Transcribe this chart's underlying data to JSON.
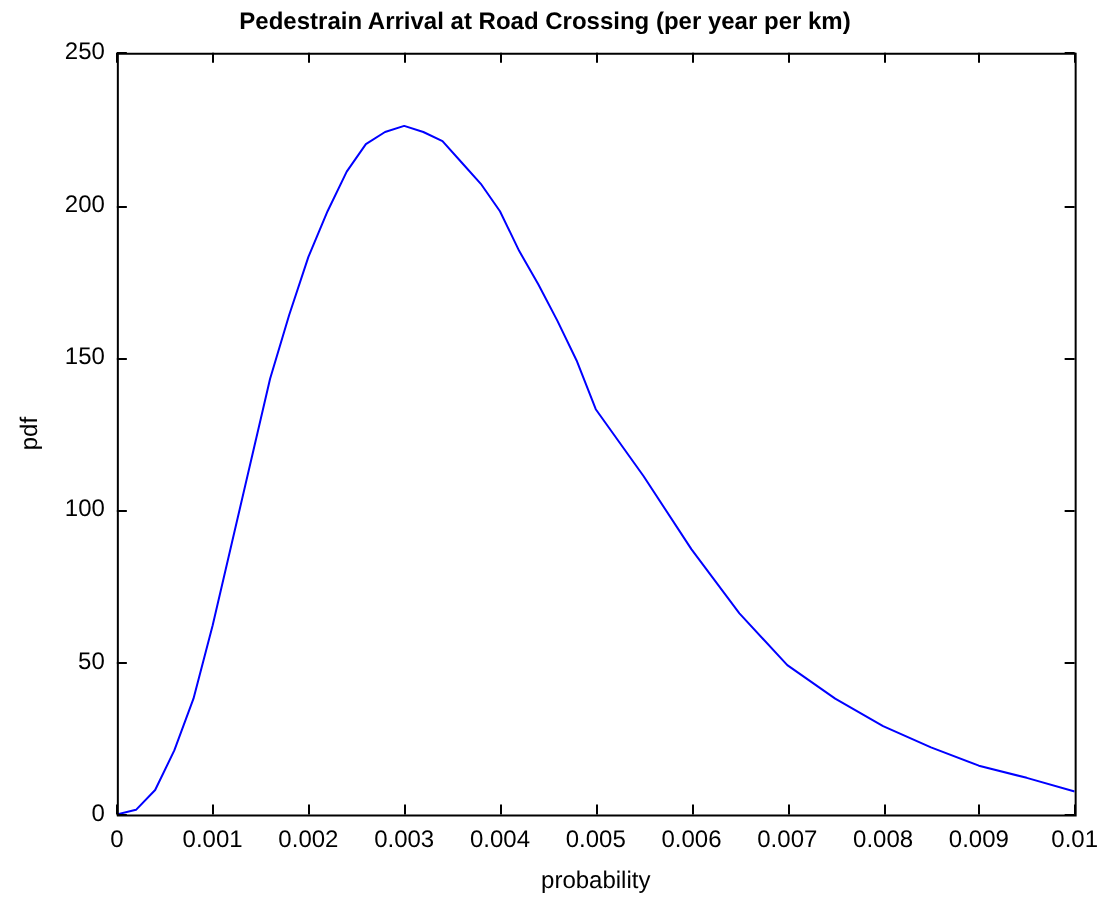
{
  "chart_data": {
    "type": "line",
    "title": "Pedestrain Arrival at Road Crossing (per year per km)",
    "xlabel": "probability",
    "ylabel": "pdf",
    "x": [
      0,
      0.0002,
      0.0004,
      0.0006,
      0.0008,
      0.001,
      0.0012,
      0.0014,
      0.0016,
      0.0018,
      0.002,
      0.0022,
      0.0024,
      0.0026,
      0.0028,
      0.003,
      0.0032,
      0.0034,
      0.0036,
      0.0038,
      0.004,
      0.0042,
      0.0044,
      0.0046,
      0.0048,
      0.005,
      0.0055,
      0.006,
      0.0065,
      0.007,
      0.0075,
      0.008,
      0.0085,
      0.009,
      0.0095,
      0.01
    ],
    "series": [
      {
        "color": "#0000ff",
        "values": [
          0,
          1.5,
          8,
          21,
          38,
          62,
          89,
          116,
          143,
          164,
          183,
          198,
          211,
          220,
          224,
          226,
          224,
          221,
          214,
          207,
          198,
          185,
          174,
          162,
          149,
          133,
          111,
          87,
          66,
          49,
          38,
          29,
          22,
          16,
          12,
          7.5
        ]
      }
    ],
    "xlim": [
      0,
      0.01
    ],
    "xticks": [
      0,
      0.001,
      0.002,
      0.003,
      0.004,
      0.005,
      0.006,
      0.007,
      0.008,
      0.009,
      0.01
    ],
    "ylim": [
      0,
      250
    ],
    "yticks": [
      0,
      50,
      100,
      150,
      200,
      250
    ],
    "grid": false,
    "legend": false,
    "marker": "none",
    "line_style": "solid"
  }
}
